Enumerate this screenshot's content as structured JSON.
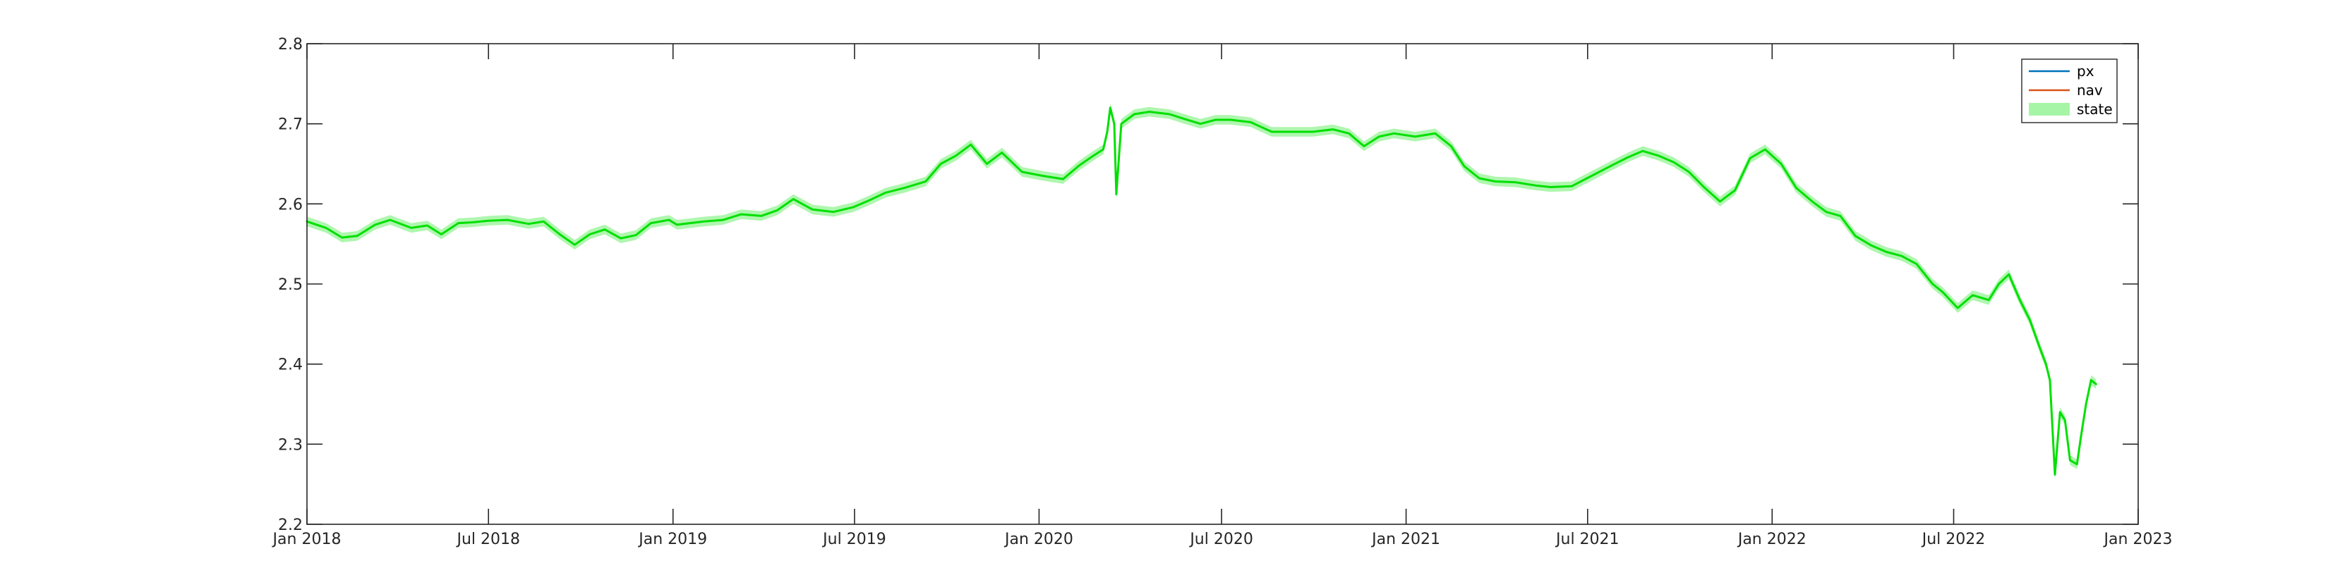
{
  "chart_data": {
    "type": "line",
    "title": "",
    "xlabel": "",
    "ylabel": "",
    "ylim": [
      2.2,
      2.8
    ],
    "yticks": [
      2.2,
      2.3,
      2.4,
      2.5,
      2.6,
      2.7,
      2.8
    ],
    "ytick_labels": [
      "2.2",
      "2.3",
      "2.4",
      "2.5",
      "2.6",
      "2.7",
      "2.8"
    ],
    "xlim": [
      "2018-01-01",
      "2023-01-01"
    ],
    "xticks": [
      "2018-01-01",
      "2018-07-01",
      "2019-01-01",
      "2019-07-01",
      "2020-01-01",
      "2020-07-01",
      "2021-01-01",
      "2021-07-01",
      "2022-01-01",
      "2022-07-01",
      "2023-01-01"
    ],
    "xtick_labels": [
      "Jan 2018",
      "Jul 2018",
      "Jan 2019",
      "Jul 2019",
      "Jan 2020",
      "Jul 2020",
      "Jan 2021",
      "Jul 2021",
      "Jan 2022",
      "Jul 2022",
      "Jan 2023"
    ],
    "legend": {
      "position": "top-right",
      "entries": [
        {
          "label": "px",
          "color": "#0072BD",
          "kind": "line"
        },
        {
          "label": "nav",
          "color": "#D95319",
          "kind": "line"
        },
        {
          "label": "state",
          "color": "#A6F5A6",
          "kind": "patch"
        }
      ]
    },
    "series": [
      {
        "name": "state",
        "color": "#00E000",
        "band_color": "#A6F5A6",
        "band_halfwidth": 0.006,
        "x": [
          "2018-01-01",
          "2018-01-20",
          "2018-02-05",
          "2018-02-20",
          "2018-03-10",
          "2018-03-25",
          "2018-04-15",
          "2018-05-01",
          "2018-05-15",
          "2018-06-01",
          "2018-06-15",
          "2018-07-01",
          "2018-07-20",
          "2018-08-10",
          "2018-08-25",
          "2018-09-10",
          "2018-09-25",
          "2018-10-10",
          "2018-10-25",
          "2018-11-10",
          "2018-11-25",
          "2018-12-10",
          "2018-12-28",
          "2019-01-05",
          "2019-02-01",
          "2019-02-20",
          "2019-03-10",
          "2019-03-30",
          "2019-04-15",
          "2019-05-01",
          "2019-05-20",
          "2019-06-10",
          "2019-06-30",
          "2019-07-15",
          "2019-08-01",
          "2019-08-20",
          "2019-09-10",
          "2019-09-25",
          "2019-10-10",
          "2019-10-25",
          "2019-11-10",
          "2019-11-25",
          "2019-12-15",
          "2020-01-05",
          "2020-01-25",
          "2020-02-10",
          "2020-02-24",
          "2020-03-05",
          "2020-03-09",
          "2020-03-12",
          "2020-03-16",
          "2020-03-18",
          "2020-03-23",
          "2020-04-05",
          "2020-04-20",
          "2020-05-10",
          "2020-05-25",
          "2020-06-10",
          "2020-06-25",
          "2020-07-10",
          "2020-07-30",
          "2020-08-20",
          "2020-09-10",
          "2020-09-30",
          "2020-10-20",
          "2020-11-05",
          "2020-11-20",
          "2020-12-05",
          "2020-12-20",
          "2021-01-10",
          "2021-01-30",
          "2021-02-15",
          "2021-02-28",
          "2021-03-15",
          "2021-03-31",
          "2021-04-20",
          "2021-05-10",
          "2021-05-25",
          "2021-06-15",
          "2021-07-05",
          "2021-07-25",
          "2021-08-10",
          "2021-08-25",
          "2021-09-10",
          "2021-09-25",
          "2021-10-10",
          "2021-10-25",
          "2021-11-10",
          "2021-11-25",
          "2021-12-10",
          "2021-12-25",
          "2022-01-10",
          "2022-01-25",
          "2022-02-10",
          "2022-02-24",
          "2022-03-10",
          "2022-03-25",
          "2022-04-10",
          "2022-04-25",
          "2022-05-10",
          "2022-05-25",
          "2022-06-10",
          "2022-06-20",
          "2022-07-05",
          "2022-07-20",
          "2022-08-05",
          "2022-08-15",
          "2022-08-25",
          "2022-09-05",
          "2022-09-15",
          "2022-09-25",
          "2022-10-01",
          "2022-10-05",
          "2022-10-10",
          "2022-10-15",
          "2022-10-20",
          "2022-10-25",
          "2022-11-01",
          "2022-11-05",
          "2022-11-10",
          "2022-11-15",
          "2022-11-20"
        ],
        "values": [
          2.578,
          2.57,
          2.558,
          2.56,
          2.574,
          2.58,
          2.57,
          2.573,
          2.562,
          2.576,
          2.577,
          2.579,
          2.58,
          2.575,
          2.578,
          2.562,
          2.549,
          2.562,
          2.568,
          2.557,
          2.561,
          2.576,
          2.58,
          2.574,
          2.578,
          2.58,
          2.587,
          2.585,
          2.592,
          2.606,
          2.593,
          2.59,
          2.596,
          2.604,
          2.614,
          2.62,
          2.628,
          2.65,
          2.66,
          2.674,
          2.65,
          2.664,
          2.64,
          2.635,
          2.631,
          2.648,
          2.66,
          2.668,
          2.69,
          2.72,
          2.7,
          2.612,
          2.7,
          2.712,
          2.715,
          2.712,
          2.706,
          2.7,
          2.705,
          2.705,
          2.702,
          2.69,
          2.69,
          2.69,
          2.693,
          2.688,
          2.672,
          2.684,
          2.688,
          2.684,
          2.688,
          2.672,
          2.647,
          2.632,
          2.628,
          2.627,
          2.623,
          2.621,
          2.622,
          2.635,
          2.648,
          2.658,
          2.666,
          2.66,
          2.652,
          2.64,
          2.621,
          2.603,
          2.617,
          2.657,
          2.668,
          2.65,
          2.62,
          2.603,
          2.59,
          2.585,
          2.56,
          2.548,
          2.54,
          2.535,
          2.525,
          2.5,
          2.49,
          2.47,
          2.486,
          2.48,
          2.5,
          2.512,
          2.48,
          2.455,
          2.42,
          2.4,
          2.38,
          2.262,
          2.34,
          2.33,
          2.28,
          2.275,
          2.31,
          2.35,
          2.38,
          2.375
        ]
      }
    ]
  }
}
